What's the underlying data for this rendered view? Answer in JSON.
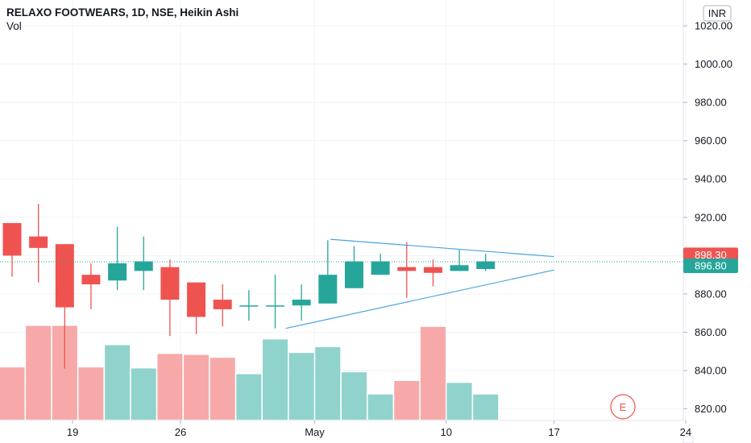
{
  "header": {
    "title": "RELAXO FOOTWEARS, 1D, NSE, Heikin Ashi",
    "volume_label": "Vol"
  },
  "currency_badge": "INR",
  "earnings_marker": "E",
  "colors": {
    "up": "#26a69a",
    "down": "#ef5350",
    "vol_up": "#8fd3cc",
    "vol_down": "#f6a9a8",
    "trendline": "#4aa3df",
    "grid": "#f0f3fa"
  },
  "chart_data": {
    "type": "candlestick",
    "price_axis": {
      "ticks": [
        "1020.00",
        "1000.00",
        "980.00",
        "960.00",
        "940.00",
        "920.00",
        "880.00",
        "860.00",
        "840.00",
        "820.00"
      ],
      "range": [
        815,
        1027
      ]
    },
    "time_axis": {
      "ticks": [
        {
          "label": "19",
          "index": 2.3
        },
        {
          "label": "26",
          "index": 6.4
        },
        {
          "label": "May",
          "index": 11.5
        },
        {
          "label": "10",
          "index": 16.5
        },
        {
          "label": "17",
          "index": 20.6
        },
        {
          "label": "24",
          "index": 25.6
        }
      ]
    },
    "price_tags": [
      {
        "value": "898.30",
        "price": 898.3,
        "color": "#ef5350"
      },
      {
        "value": "896.80",
        "price": 896.8,
        "color": "#26a69a"
      }
    ],
    "candles": [
      {
        "o": 917,
        "h": 917,
        "l": 889,
        "c": 900
      },
      {
        "o": 910,
        "h": 927,
        "l": 886,
        "c": 904
      },
      {
        "o": 906,
        "h": 906,
        "l": 841,
        "c": 873
      },
      {
        "o": 890,
        "h": 896,
        "l": 872,
        "c": 885
      },
      {
        "o": 887,
        "h": 915,
        "l": 882,
        "c": 896
      },
      {
        "o": 892,
        "h": 910,
        "l": 882,
        "c": 897
      },
      {
        "o": 894,
        "h": 898,
        "l": 858,
        "c": 877
      },
      {
        "o": 886,
        "h": 886,
        "l": 859,
        "c": 868
      },
      {
        "o": 877,
        "h": 885,
        "l": 863,
        "c": 872
      },
      {
        "o": 874,
        "h": 882,
        "l": 866,
        "c": 874
      },
      {
        "o": 874,
        "h": 890,
        "l": 862,
        "c": 874
      },
      {
        "o": 874,
        "h": 885,
        "l": 866,
        "c": 877
      },
      {
        "o": 875,
        "h": 908,
        "l": 875,
        "c": 890
      },
      {
        "o": 883,
        "h": 905,
        "l": 883,
        "c": 897
      },
      {
        "o": 890,
        "h": 901,
        "l": 890,
        "c": 897
      },
      {
        "o": 894,
        "h": 907,
        "l": 878,
        "c": 892
      },
      {
        "o": 894,
        "h": 898,
        "l": 884,
        "c": 891
      },
      {
        "o": 892,
        "h": 903,
        "l": 892,
        "c": 895
      },
      {
        "o": 893,
        "h": 901,
        "l": 892,
        "c": 897
      }
    ],
    "volume_relative": [
      0.54,
      0.97,
      0.97,
      0.54,
      0.77,
      0.53,
      0.68,
      0.67,
      0.64,
      0.47,
      0.83,
      0.69,
      0.75,
      0.49,
      0.26,
      0.4,
      0.96,
      0.38,
      0.26
    ],
    "trendlines": [
      {
        "from": {
          "index": 12.1,
          "price": 908.5
        },
        "to": {
          "index": 20.6,
          "price": 899.5
        }
      },
      {
        "from": {
          "index": 10.4,
          "price": 862
        },
        "to": {
          "index": 20.6,
          "price": 892.5
        }
      }
    ]
  }
}
